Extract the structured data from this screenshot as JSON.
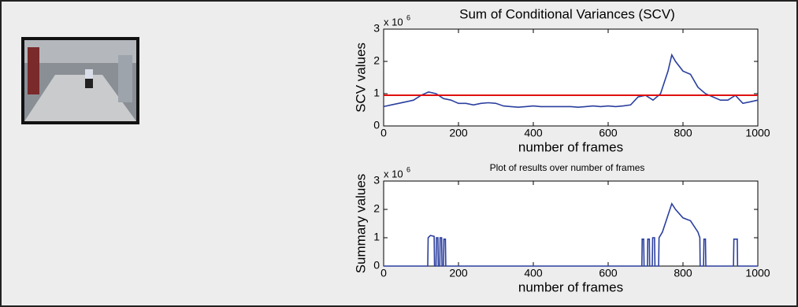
{
  "chart_data": [
    {
      "type": "line",
      "title": "Sum of Conditional Variances (SCV)",
      "xlabel": "number of frames",
      "ylabel": "SCV values",
      "y_scale_base": "x 10",
      "y_scale_exponent": "6",
      "xlim": [
        0,
        1000
      ],
      "xticks": [
        0,
        200,
        400,
        600,
        800,
        1000
      ],
      "ylim": [
        0,
        3
      ],
      "yticks": [
        0,
        1,
        2,
        3
      ],
      "x": [
        0,
        20,
        40,
        60,
        80,
        100,
        120,
        140,
        160,
        180,
        200,
        220,
        240,
        260,
        280,
        300,
        320,
        340,
        360,
        380,
        400,
        420,
        440,
        460,
        480,
        500,
        520,
        540,
        560,
        580,
        600,
        620,
        640,
        660,
        680,
        700,
        720,
        740,
        760,
        770,
        780,
        800,
        820,
        840,
        860,
        880,
        900,
        920,
        940,
        960,
        980,
        1000
      ],
      "series": [
        {
          "color": "#2b3f9e",
          "values": [
            0.6,
            0.65,
            0.7,
            0.75,
            0.8,
            0.95,
            1.05,
            1.0,
            0.85,
            0.8,
            0.7,
            0.7,
            0.65,
            0.7,
            0.72,
            0.7,
            0.62,
            0.6,
            0.58,
            0.6,
            0.62,
            0.6,
            0.6,
            0.6,
            0.6,
            0.6,
            0.58,
            0.6,
            0.62,
            0.6,
            0.62,
            0.6,
            0.62,
            0.65,
            0.9,
            0.95,
            0.8,
            1.0,
            1.7,
            2.2,
            2.0,
            1.7,
            1.6,
            1.2,
            1.0,
            0.9,
            0.8,
            0.8,
            0.95,
            0.7,
            0.75,
            0.8
          ]
        }
      ],
      "threshold": {
        "value": 0.95,
        "color": "#e01010"
      }
    },
    {
      "type": "line",
      "title": "Plot of results over number of frames",
      "xlabel": "number of frames",
      "ylabel": "Summary values",
      "y_scale_base": "x 10",
      "y_scale_exponent": "6",
      "xlim": [
        0,
        1000
      ],
      "xticks": [
        0,
        200,
        400,
        600,
        800,
        1000
      ],
      "ylim": [
        0,
        3
      ],
      "yticks": [
        0,
        1,
        2,
        3
      ],
      "x": [
        0,
        118,
        119,
        125,
        135,
        136,
        140,
        141,
        145,
        146,
        150,
        151,
        155,
        156,
        160,
        161,
        165,
        166,
        690,
        691,
        695,
        696,
        705,
        706,
        710,
        711,
        718,
        719,
        724,
        725,
        735,
        736,
        745,
        760,
        770,
        780,
        800,
        820,
        840,
        845,
        846,
        855,
        856,
        860,
        861,
        935,
        936,
        945,
        946,
        1000
      ],
      "series": [
        {
          "color": "#2b3f9e",
          "values": [
            0,
            0,
            1.0,
            1.08,
            1.05,
            0,
            0,
            1.0,
            1.0,
            0,
            0,
            1.0,
            1.0,
            0,
            0,
            0.95,
            0.95,
            0,
            0,
            0.95,
            0.95,
            0,
            0,
            0.95,
            0.95,
            0,
            0,
            1.0,
            1.0,
            0,
            0,
            1.0,
            1.2,
            1.8,
            2.2,
            2.0,
            1.7,
            1.6,
            1.2,
            1.0,
            0,
            0,
            0.95,
            0.95,
            0,
            0,
            0.95,
            0.95,
            0,
            0
          ]
        }
      ]
    }
  ]
}
